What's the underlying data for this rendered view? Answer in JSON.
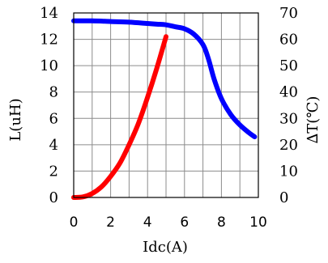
{
  "chart_data": {
    "type": "line",
    "xlabel": "Idc(A)",
    "ylabel": "L(uH)",
    "y2label": "∆T(℃)",
    "xlim": [
      0,
      10
    ],
    "ylim": [
      0,
      14
    ],
    "y2lim": [
      0,
      70
    ],
    "xticks": [
      0,
      2,
      4,
      6,
      8,
      10
    ],
    "yticks": [
      0,
      2,
      4,
      6,
      8,
      10,
      12,
      14
    ],
    "y2ticks": [
      0,
      10,
      20,
      30,
      40,
      50,
      60,
      70
    ],
    "grid": true,
    "series": [
      {
        "axis": "left",
        "color": "#0000ff",
        "x": [
          0,
          1,
          2,
          3,
          4,
          4.5,
          5,
          5.5,
          6,
          6.5,
          7,
          7.3,
          7.6,
          8,
          8.5,
          9,
          9.5,
          9.8
        ],
        "y": [
          13.4,
          13.4,
          13.35,
          13.3,
          13.2,
          13.15,
          13.1,
          12.95,
          12.8,
          12.4,
          11.6,
          10.5,
          9.0,
          7.5,
          6.3,
          5.5,
          4.9,
          4.6
        ]
      },
      {
        "axis": "right",
        "color": "#ff0000",
        "x": [
          0,
          0.5,
          1,
          1.5,
          2,
          2.5,
          3,
          3.5,
          4,
          4.5,
          5
        ],
        "y": [
          0,
          0.2,
          1.5,
          4,
          8,
          13,
          20,
          28,
          38,
          49,
          61
        ]
      }
    ]
  }
}
